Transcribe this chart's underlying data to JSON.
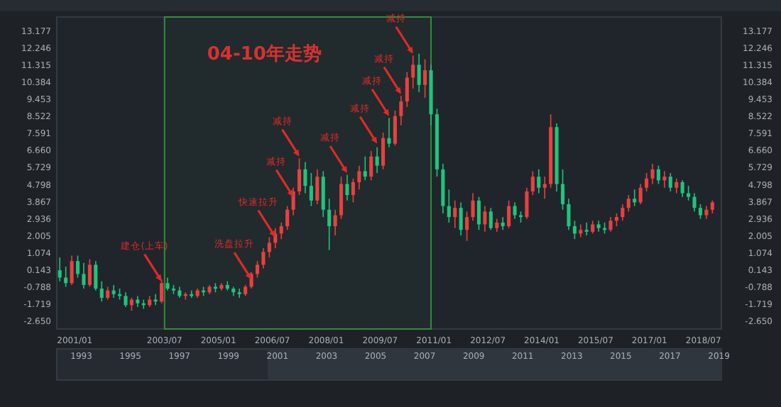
{
  "chart_data": {
    "type": "candlestick",
    "x": [
      "2000-08",
      "2000-10",
      "2000-12",
      "2001-02",
      "2001-04",
      "2001-06",
      "2001-08",
      "2001-10",
      "2001-12",
      "2002-02",
      "2002-04",
      "2002-06",
      "2002-08",
      "2002-10",
      "2002-12",
      "2003-02",
      "2003-04",
      "2003-06",
      "2003-08",
      "2003-10",
      "2003-12",
      "2004-02",
      "2004-04",
      "2004-06",
      "2004-08",
      "2004-10",
      "2004-12",
      "2005-02",
      "2005-04",
      "2005-06",
      "2005-08",
      "2005-10",
      "2005-12",
      "2006-02",
      "2006-04",
      "2006-06",
      "2006-08",
      "2006-10",
      "2006-12",
      "2007-02",
      "2007-04",
      "2007-06",
      "2007-08",
      "2007-10",
      "2007-12",
      "2008-02",
      "2008-04",
      "2008-06",
      "2008-08",
      "2008-10",
      "2008-12",
      "2009-02",
      "2009-04",
      "2009-06",
      "2009-08",
      "2009-10",
      "2009-12",
      "2010-02",
      "2010-04",
      "2010-06",
      "2010-08",
      "2010-10",
      "2010-12",
      "2011-02",
      "2011-04",
      "2011-06",
      "2011-08",
      "2011-10",
      "2011-12",
      "2012-02",
      "2012-04",
      "2012-06",
      "2012-08",
      "2012-10",
      "2012-12",
      "2013-02",
      "2013-04",
      "2013-06",
      "2013-08",
      "2013-10",
      "2013-12",
      "2014-02",
      "2014-04",
      "2014-06",
      "2014-08",
      "2014-10",
      "2014-12",
      "2015-02",
      "2015-04",
      "2015-06",
      "2015-08",
      "2015-10",
      "2015-12",
      "2016-02",
      "2016-04",
      "2016-06",
      "2016-08",
      "2016-10",
      "2016-12",
      "2017-02",
      "2017-04",
      "2017-06",
      "2017-08",
      "2017-10",
      "2017-12",
      "2018-02",
      "2018-04",
      "2018-06",
      "2018-08",
      "2018-10"
    ],
    "ohlc": [
      [
        0.1,
        0.8,
        -0.5,
        -0.3
      ],
      [
        -0.3,
        0.3,
        -0.8,
        -0.6
      ],
      [
        -0.6,
        0.9,
        -0.7,
        0.6
      ],
      [
        0.6,
        0.9,
        -0.3,
        -0.1
      ],
      [
        -0.1,
        0.5,
        -0.9,
        -0.7
      ],
      [
        -0.7,
        0.7,
        -0.8,
        0.4
      ],
      [
        0.4,
        0.6,
        -1.0,
        -0.9
      ],
      [
        -0.9,
        -0.5,
        -1.6,
        -1.4
      ],
      [
        -1.4,
        -0.8,
        -1.5,
        -1.0
      ],
      [
        -1.0,
        -0.7,
        -1.4,
        -1.2
      ],
      [
        -1.2,
        -0.9,
        -1.5,
        -1.3
      ],
      [
        -1.3,
        -1.1,
        -1.9,
        -1.8
      ],
      [
        -1.8,
        -1.4,
        -2.1,
        -1.5
      ],
      [
        -1.5,
        -1.3,
        -1.9,
        -1.7
      ],
      [
        -1.7,
        -1.5,
        -2.0,
        -1.8
      ],
      [
        -1.8,
        -1.3,
        -1.9,
        -1.5
      ],
      [
        -1.5,
        -1.2,
        -1.8,
        -1.6
      ],
      [
        -1.6,
        -0.4,
        -1.7,
        -0.6
      ],
      [
        -0.6,
        -0.3,
        -1.0,
        -0.9
      ],
      [
        -0.9,
        -0.7,
        -1.2,
        -1.0
      ],
      [
        -1.0,
        -0.8,
        -1.4,
        -1.3
      ],
      [
        -1.3,
        -1.1,
        -1.5,
        -1.2
      ],
      [
        -1.2,
        -1.0,
        -1.4,
        -1.3
      ],
      [
        -1.3,
        -0.9,
        -1.4,
        -1.0
      ],
      [
        -1.0,
        -0.8,
        -1.3,
        -1.1
      ],
      [
        -1.1,
        -0.7,
        -1.2,
        -0.8
      ],
      [
        -0.8,
        -0.6,
        -1.1,
        -0.9
      ],
      [
        -0.9,
        -0.6,
        -1.0,
        -0.7
      ],
      [
        -0.7,
        -0.5,
        -1.0,
        -0.9
      ],
      [
        -0.9,
        -0.8,
        -1.3,
        -1.1
      ],
      [
        -1.1,
        -0.9,
        -1.4,
        -1.2
      ],
      [
        -1.2,
        -0.7,
        -1.3,
        -0.8
      ],
      [
        -0.8,
        0.0,
        -0.9,
        -0.1
      ],
      [
        -0.1,
        0.6,
        -0.3,
        0.4
      ],
      [
        0.4,
        1.3,
        0.2,
        1.1
      ],
      [
        1.1,
        1.9,
        0.8,
        1.6
      ],
      [
        1.6,
        2.4,
        1.3,
        2.1
      ],
      [
        2.1,
        2.7,
        1.8,
        2.5
      ],
      [
        2.5,
        3.6,
        2.3,
        3.4
      ],
      [
        3.4,
        4.6,
        3.1,
        4.4
      ],
      [
        4.4,
        6.2,
        4.2,
        5.6
      ],
      [
        5.6,
        6.0,
        4.3,
        4.7
      ],
      [
        4.7,
        5.4,
        3.6,
        3.9
      ],
      [
        3.9,
        5.6,
        3.7,
        5.2
      ],
      [
        5.2,
        5.5,
        3.0,
        3.4
      ],
      [
        3.4,
        4.0,
        1.2,
        2.5
      ],
      [
        2.5,
        3.4,
        2.0,
        3.1
      ],
      [
        3.1,
        5.2,
        2.9,
        4.8
      ],
      [
        4.8,
        5.3,
        3.9,
        4.2
      ],
      [
        4.2,
        5.1,
        3.8,
        4.9
      ],
      [
        4.9,
        5.8,
        4.5,
        5.5
      ],
      [
        5.5,
        6.3,
        5.0,
        5.2
      ],
      [
        5.2,
        6.6,
        5.0,
        6.3
      ],
      [
        6.3,
        6.8,
        5.4,
        5.8
      ],
      [
        5.8,
        7.6,
        5.6,
        7.3
      ],
      [
        7.3,
        8.4,
        6.8,
        7.0
      ],
      [
        7.0,
        8.8,
        6.9,
        8.5
      ],
      [
        8.5,
        9.6,
        8.0,
        9.3
      ],
      [
        9.3,
        10.9,
        9.0,
        10.6
      ],
      [
        10.6,
        11.8,
        10.0,
        11.3
      ],
      [
        11.3,
        11.9,
        9.8,
        10.2
      ],
      [
        10.2,
        11.6,
        9.5,
        11.0
      ],
      [
        11.0,
        11.3,
        8.0,
        8.6
      ],
      [
        8.6,
        8.9,
        5.2,
        5.6
      ],
      [
        5.6,
        5.9,
        3.2,
        3.6
      ],
      [
        3.6,
        4.5,
        2.7,
        3.0
      ],
      [
        3.0,
        3.9,
        2.4,
        3.5
      ],
      [
        3.5,
        3.8,
        2.0,
        2.3
      ],
      [
        2.3,
        3.3,
        1.7,
        3.0
      ],
      [
        3.0,
        4.3,
        2.8,
        3.9
      ],
      [
        3.9,
        4.1,
        2.3,
        2.6
      ],
      [
        2.6,
        3.6,
        2.2,
        3.3
      ],
      [
        3.3,
        3.5,
        2.3,
        2.4
      ],
      [
        2.4,
        2.9,
        2.2,
        2.7
      ],
      [
        2.7,
        3.0,
        2.3,
        2.5
      ],
      [
        2.5,
        3.9,
        2.4,
        3.6
      ],
      [
        3.6,
        3.8,
        2.9,
        3.1
      ],
      [
        3.1,
        3.3,
        2.7,
        3.0
      ],
      [
        3.0,
        4.6,
        2.9,
        4.4
      ],
      [
        4.4,
        5.5,
        4.2,
        5.2
      ],
      [
        5.2,
        5.6,
        4.3,
        4.6
      ],
      [
        4.6,
        5.2,
        4.0,
        4.8
      ],
      [
        4.8,
        8.6,
        4.6,
        7.9
      ],
      [
        7.9,
        8.1,
        4.4,
        4.8
      ],
      [
        4.8,
        5.6,
        3.4,
        3.7
      ],
      [
        3.7,
        4.0,
        2.3,
        2.5
      ],
      [
        2.5,
        2.8,
        1.8,
        2.1
      ],
      [
        2.1,
        2.6,
        1.9,
        2.3
      ],
      [
        2.3,
        2.7,
        2.0,
        2.2
      ],
      [
        2.2,
        2.8,
        2.1,
        2.6
      ],
      [
        2.6,
        2.8,
        2.2,
        2.4
      ],
      [
        2.4,
        2.7,
        2.1,
        2.3
      ],
      [
        2.3,
        3.0,
        2.2,
        2.8
      ],
      [
        2.8,
        3.2,
        2.5,
        3.0
      ],
      [
        3.0,
        3.7,
        2.8,
        3.5
      ],
      [
        3.5,
        4.2,
        3.3,
        4.0
      ],
      [
        4.0,
        4.5,
        3.6,
        3.8
      ],
      [
        3.8,
        4.8,
        3.7,
        4.6
      ],
      [
        4.6,
        5.4,
        4.4,
        5.1
      ],
      [
        5.1,
        5.9,
        4.8,
        5.6
      ],
      [
        5.6,
        5.8,
        4.8,
        5.0
      ],
      [
        5.0,
        5.5,
        4.6,
        5.2
      ],
      [
        5.2,
        5.4,
        4.4,
        4.6
      ],
      [
        4.6,
        5.1,
        4.3,
        4.9
      ],
      [
        4.9,
        5.0,
        4.1,
        4.3
      ],
      [
        4.3,
        4.7,
        3.9,
        4.1
      ],
      [
        4.1,
        4.3,
        3.3,
        3.5
      ],
      [
        3.5,
        3.7,
        2.9,
        3.1
      ],
      [
        3.1,
        3.6,
        2.9,
        3.4
      ],
      [
        3.4,
        3.9,
        3.2,
        3.8
      ]
    ],
    "xlim": [
      "2000-07",
      "2019-01"
    ],
    "xticks": [
      {
        "value": "2001-01",
        "label": "2001/01"
      },
      {
        "value": "2003-07",
        "label": "2003/07"
      },
      {
        "value": "2005-01",
        "label": "2005/01"
      },
      {
        "value": "2006-07",
        "label": "2006/07"
      },
      {
        "value": "2008-01",
        "label": "2008/01"
      },
      {
        "value": "2009-07",
        "label": "2009/07"
      },
      {
        "value": "2011-01",
        "label": "2011/01"
      },
      {
        "value": "2012-07",
        "label": "2012/07"
      },
      {
        "value": "2014-01",
        "label": "2014/01"
      },
      {
        "value": "2015-07",
        "label": "2015/07"
      },
      {
        "value": "2017-01",
        "label": "2017/01"
      },
      {
        "value": "2018-07",
        "label": "2018/07"
      }
    ],
    "ylim": [
      -3.1,
      13.9
    ],
    "yticks": [
      {
        "value": -2.65,
        "label": "-2.650"
      },
      -1.719,
      -0.788,
      0.143,
      1.074,
      2.005,
      2.936,
      3.867,
      4.798,
      5.729,
      {
        "value": 6.66,
        "label": "6.660"
      },
      7.591,
      8.522,
      9.453,
      10.384,
      11.315,
      12.246,
      13.177
    ],
    "y2lim": [
      -3.1,
      13.9
    ],
    "y2ticks": [
      {
        "value": -2.65,
        "label": "-2.650"
      },
      -1.719,
      -0.788,
      0.143,
      1.074,
      2.005,
      2.936,
      3.867,
      4.798,
      5.729,
      {
        "value": 6.66,
        "label": "6.660"
      },
      7.591,
      8.522,
      9.453,
      10.384,
      11.315,
      12.246,
      13.177
    ],
    "x2lim": [
      1992,
      2019.1
    ],
    "x2ticks": [
      1993,
      1995,
      1997,
      1999,
      2001,
      2003,
      2005,
      2007,
      2009,
      2011,
      2013,
      2015,
      2017,
      2019
    ],
    "bands": [
      {
        "axis": "x",
        "from": "2003-07",
        "to": "2010-12",
        "label": "04-10年走势",
        "color": "#2f8f3c"
      }
    ],
    "annotations": [
      {
        "text": "建仓(上车)",
        "x": "2003-06",
        "y": -0.5
      },
      {
        "text": "洗盘拉升",
        "x": "2005-12",
        "y": -0.4
      },
      {
        "text": "快速拉升",
        "x": "2006-08",
        "y": 1.9
      },
      {
        "text": "减持",
        "x": "2007-02",
        "y": 4.1
      },
      {
        "text": "减持",
        "x": "2007-04",
        "y": 6.3
      },
      {
        "text": "减持",
        "x": "2008-08",
        "y": 5.4
      },
      {
        "text": "减持",
        "x": "2009-06",
        "y": 7.0
      },
      {
        "text": "减持",
        "x": "2009-10",
        "y": 8.5
      },
      {
        "text": "减持",
        "x": "2010-02",
        "y": 9.7
      },
      {
        "text": "减持",
        "x": "2010-06",
        "y": 11.9
      }
    ],
    "grid": false
  }
}
